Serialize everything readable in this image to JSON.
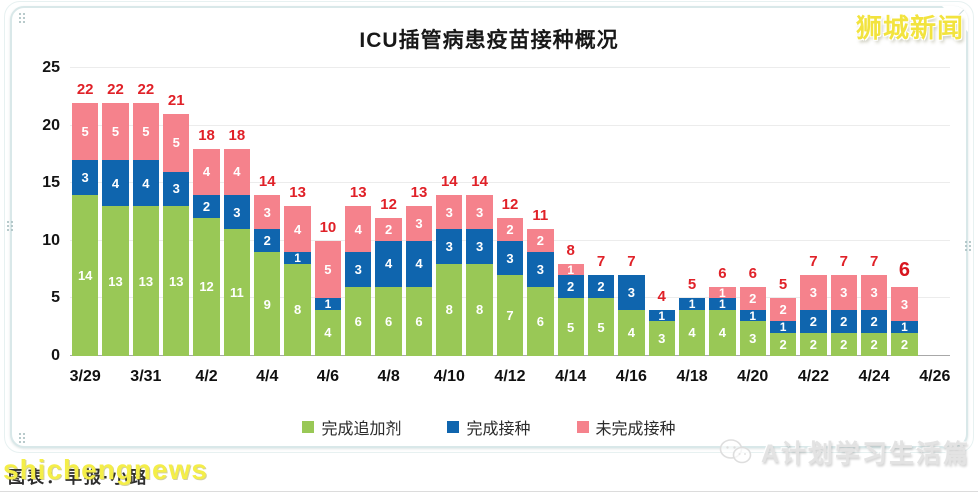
{
  "page": {
    "brand_logo": "狮城新闻",
    "site_watermark": "shichengnews",
    "caption_text": "图表：早报·小路",
    "account_watermark": "A计划学习生活篇"
  },
  "chart_data": {
    "type": "bar",
    "stacked": true,
    "title": "ICU插管病患疫苗接种概况",
    "categories": [
      "3/29",
      "3/30",
      "3/31",
      "4/1",
      "4/2",
      "4/3",
      "4/4",
      "4/5",
      "4/6",
      "4/7",
      "4/8",
      "4/9",
      "4/10",
      "4/11",
      "4/12",
      "4/13",
      "4/14",
      "4/15",
      "4/16",
      "4/17",
      "4/18",
      "4/19",
      "4/20",
      "4/21",
      "4/22",
      "4/23",
      "4/24",
      "4/25"
    ],
    "x_tick_labels": [
      "3/29",
      "3/31",
      "4/2",
      "4/4",
      "4/6",
      "4/8",
      "4/10",
      "4/12",
      "4/14",
      "4/16",
      "4/18",
      "4/20",
      "4/22",
      "4/24",
      "4/26"
    ],
    "series": [
      {
        "name": "完成追加剂",
        "color": "#99c856",
        "values": [
          14,
          13,
          13,
          13,
          12,
          11,
          9,
          8,
          4,
          6,
          6,
          6,
          8,
          8,
          7,
          6,
          5,
          5,
          4,
          3,
          4,
          4,
          3,
          2,
          2,
          2,
          2,
          2
        ]
      },
      {
        "name": "完成接种",
        "color": "#0f65ae",
        "values": [
          3,
          4,
          4,
          3,
          2,
          3,
          2,
          1,
          1,
          3,
          4,
          4,
          3,
          3,
          3,
          3,
          2,
          2,
          3,
          1,
          1,
          1,
          1,
          1,
          2,
          2,
          2,
          1
        ]
      },
      {
        "name": "未完成接种",
        "color": "#f5828c",
        "values": [
          5,
          5,
          5,
          5,
          4,
          4,
          3,
          4,
          5,
          4,
          2,
          3,
          3,
          3,
          2,
          2,
          1,
          0,
          0,
          0,
          0,
          1,
          2,
          2,
          3,
          3,
          3,
          3
        ]
      }
    ],
    "totals": [
      22,
      22,
      22,
      21,
      18,
      18,
      14,
      13,
      10,
      13,
      12,
      13,
      14,
      14,
      12,
      11,
      8,
      7,
      7,
      4,
      5,
      6,
      6,
      5,
      7,
      7,
      7,
      6
    ],
    "highlight_last_total": true,
    "total_label_color": "#e02128",
    "highlight_total_color": "#d8161f",
    "ylim": [
      0,
      25
    ],
    "y_ticks": [
      0,
      5,
      10,
      15,
      20,
      25
    ],
    "grid": true,
    "legend_position": "bottom"
  }
}
